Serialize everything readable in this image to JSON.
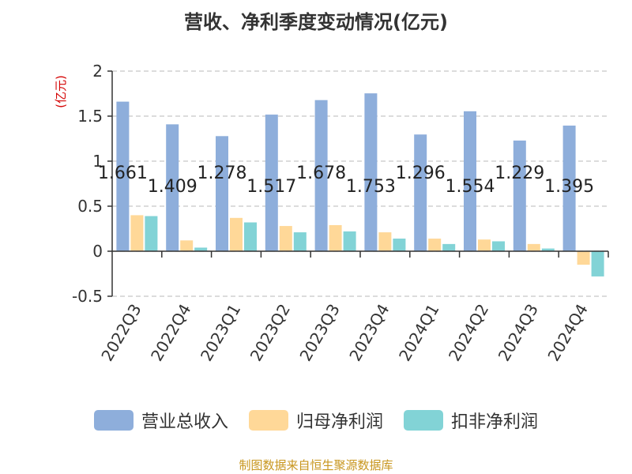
{
  "title": "营收、净利季度变动情况(亿元)",
  "source": "制图数据来自恒生聚源数据库",
  "chart_data": {
    "type": "bar",
    "title": "营收、净利季度变动情况(亿元)",
    "ylabel": "(亿元)",
    "xlabel": "",
    "ylim": [
      -0.5,
      2
    ],
    "yticks": [
      "2",
      "1.5",
      "1",
      "0.5",
      "0",
      "-0.5"
    ],
    "grid": true,
    "legend_position": "bottom",
    "categories": [
      "2022Q3",
      "2022Q4",
      "2023Q1",
      "2023Q2",
      "2023Q3",
      "2023Q4",
      "2024Q1",
      "2024Q2",
      "2024Q3",
      "2024Q4"
    ],
    "series": [
      {
        "name": "营业总收入",
        "color": "#8eaedb",
        "values": [
          1.661,
          1.409,
          1.278,
          1.517,
          1.678,
          1.753,
          1.296,
          1.554,
          1.229,
          1.395
        ],
        "labels": [
          "1.661",
          "1.409",
          "1.278",
          "1.517",
          "1.678",
          "1.753",
          "1.296",
          "1.554",
          "1.229",
          "1.395"
        ]
      },
      {
        "name": "归母净利润",
        "color": "#ffd898",
        "values": [
          0.4,
          0.12,
          0.37,
          0.28,
          0.29,
          0.21,
          0.14,
          0.13,
          0.08,
          -0.15
        ]
      },
      {
        "name": "扣非净利润",
        "color": "#82d3d6",
        "values": [
          0.39,
          0.04,
          0.32,
          0.21,
          0.22,
          0.14,
          0.08,
          0.11,
          0.03,
          -0.28
        ]
      }
    ]
  }
}
